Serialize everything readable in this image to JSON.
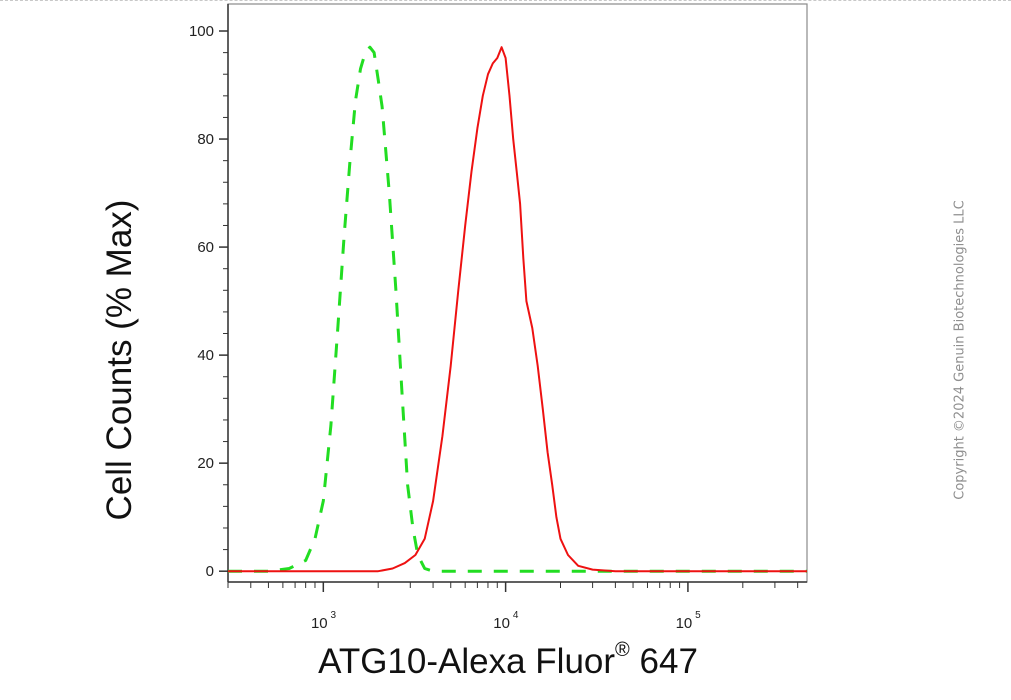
{
  "chart_data": {
    "type": "line",
    "xlabel": "ATG10-Alexa Fluor® 647",
    "ylabel": "Cell Counts (% Max)",
    "x_scale": "log",
    "xlim": [
      300,
      450000
    ],
    "ylim": [
      -2,
      105
    ],
    "x_ticks": [
      {
        "base": "10",
        "exp": "3",
        "value": 1000
      },
      {
        "base": "10",
        "exp": "4",
        "value": 10000
      },
      {
        "base": "10",
        "exp": "5",
        "value": 100000
      }
    ],
    "y_ticks": [
      "0",
      "20",
      "40",
      "60",
      "80",
      "100"
    ],
    "grid": false,
    "series": [
      {
        "color": "#22dd22",
        "dash": "dashed",
        "points": [
          [
            300,
            0
          ],
          [
            500,
            0
          ],
          [
            650,
            0.5
          ],
          [
            800,
            2
          ],
          [
            900,
            6
          ],
          [
            1000,
            13
          ],
          [
            1100,
            27
          ],
          [
            1200,
            45
          ],
          [
            1300,
            62
          ],
          [
            1400,
            76
          ],
          [
            1500,
            87
          ],
          [
            1600,
            93
          ],
          [
            1700,
            96
          ],
          [
            1800,
            97
          ],
          [
            1900,
            96
          ],
          [
            2000,
            91
          ],
          [
            2100,
            86
          ],
          [
            2300,
            70
          ],
          [
            2500,
            52
          ],
          [
            2700,
            33
          ],
          [
            2900,
            16
          ],
          [
            3100,
            8
          ],
          [
            3300,
            3
          ],
          [
            3600,
            0.5
          ],
          [
            4000,
            0
          ],
          [
            20000,
            0
          ],
          [
            450000,
            0
          ]
        ]
      },
      {
        "color": "#ee1111",
        "dash": "solid",
        "points": [
          [
            300,
            0
          ],
          [
            2000,
            0
          ],
          [
            2400,
            0.5
          ],
          [
            2800,
            1.5
          ],
          [
            3200,
            3
          ],
          [
            3600,
            6
          ],
          [
            4000,
            13
          ],
          [
            4500,
            25
          ],
          [
            5000,
            38
          ],
          [
            5500,
            52
          ],
          [
            6000,
            64
          ],
          [
            6500,
            74
          ],
          [
            7000,
            82
          ],
          [
            7500,
            88
          ],
          [
            8000,
            92
          ],
          [
            8500,
            94
          ],
          [
            9000,
            95
          ],
          [
            9500,
            97
          ],
          [
            10000,
            95
          ],
          [
            10500,
            88
          ],
          [
            11000,
            80
          ],
          [
            11500,
            74
          ],
          [
            12000,
            68
          ],
          [
            12500,
            58
          ],
          [
            13000,
            50
          ],
          [
            14000,
            45
          ],
          [
            15000,
            38
          ],
          [
            16000,
            30
          ],
          [
            17000,
            22
          ],
          [
            18000,
            16
          ],
          [
            19000,
            10
          ],
          [
            20000,
            6
          ],
          [
            22000,
            3
          ],
          [
            25000,
            1
          ],
          [
            30000,
            0.3
          ],
          [
            40000,
            0
          ],
          [
            450000,
            0
          ]
        ]
      }
    ]
  },
  "copyright": "Copyright ©2024 Genuin Biotechnologies LLC"
}
